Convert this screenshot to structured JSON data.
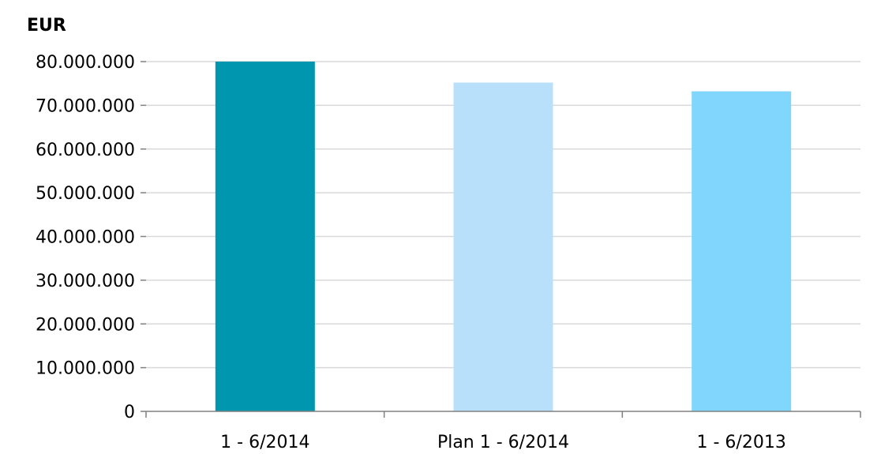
{
  "chart_data": {
    "type": "bar",
    "title": "",
    "unit_label": "EUR",
    "xlabel": "",
    "ylabel": "",
    "categories": [
      "1 - 6/2014",
      "Plan 1 - 6/2014",
      "1 - 6/2013"
    ],
    "values": [
      80000000,
      75200000,
      73200000
    ],
    "bar_colors": [
      "#0096af",
      "#b8e0fb",
      "#80d6fd"
    ],
    "ylim": [
      0,
      80000000
    ],
    "yticks": [
      0,
      10000000,
      20000000,
      30000000,
      40000000,
      50000000,
      60000000,
      70000000,
      80000000
    ],
    "ytick_labels": [
      "0",
      "10.000.000",
      "20.000.000",
      "30.000.000",
      "40.000.000",
      "50.000.000",
      "60.000.000",
      "70.000.000",
      "80.000.000"
    ],
    "grid": true,
    "legend": "none"
  }
}
